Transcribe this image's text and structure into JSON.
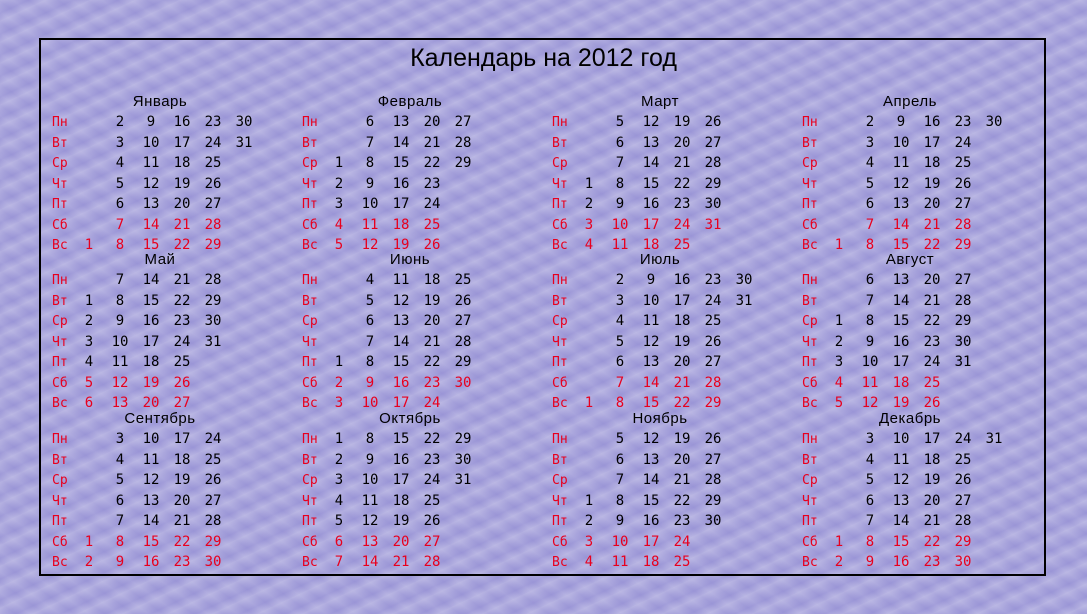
{
  "title": "Календарь на 2012 год",
  "colors": {
    "weekday_text": "#000000",
    "weekend_and_label_text": "#e8001e",
    "background": "#a8a4dc"
  },
  "day_labels": [
    "Пн",
    "Вт",
    "Ср",
    "Чт",
    "Пт",
    "Сб",
    "Вс"
  ],
  "months": [
    {
      "name": "Январь",
      "first_weekday": 6,
      "days": 31
    },
    {
      "name": "Февраль",
      "first_weekday": 2,
      "days": 29
    },
    {
      "name": "Март",
      "first_weekday": 3,
      "days": 31
    },
    {
      "name": "Апрель",
      "first_weekday": 6,
      "days": 30
    },
    {
      "name": "Май",
      "first_weekday": 1,
      "days": 31
    },
    {
      "name": "Июнь",
      "first_weekday": 4,
      "days": 30
    },
    {
      "name": "Июль",
      "first_weekday": 6,
      "days": 31
    },
    {
      "name": "Август",
      "first_weekday": 2,
      "days": 31
    },
    {
      "name": "Сентябрь",
      "first_weekday": 5,
      "days": 30
    },
    {
      "name": "Октябрь",
      "first_weekday": 0,
      "days": 31
    },
    {
      "name": "Ноябрь",
      "first_weekday": 3,
      "days": 30
    },
    {
      "name": "Декабрь",
      "first_weekday": 5,
      "days": 31
    }
  ]
}
